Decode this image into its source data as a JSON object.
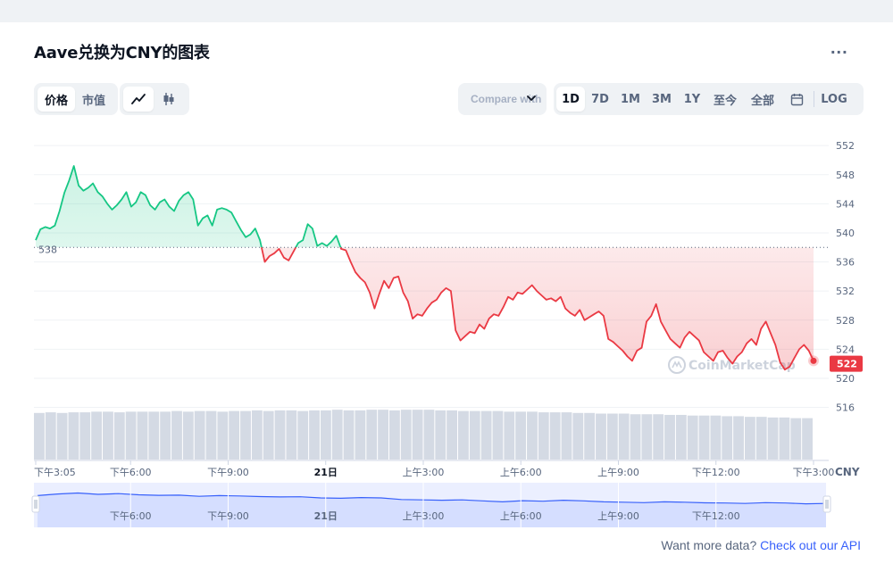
{
  "header": {
    "title": "Aave兑换为CNY的图表",
    "more_label": "..."
  },
  "toolbar": {
    "metric_tabs": [
      {
        "label": "价格",
        "active": true
      },
      {
        "label": "市值",
        "active": false
      }
    ],
    "chart_type_icons": [
      {
        "icon": "line-chart-icon",
        "active": true
      },
      {
        "icon": "candlestick-icon",
        "active": false
      }
    ],
    "compare_label": "Compare with",
    "ranges": [
      {
        "label": "1D",
        "active": true
      },
      {
        "label": "7D",
        "active": false
      },
      {
        "label": "1M",
        "active": false
      },
      {
        "label": "3M",
        "active": false
      },
      {
        "label": "1Y",
        "active": false
      },
      {
        "label": "至今",
        "active": false
      },
      {
        "label": "全部",
        "active": false
      }
    ],
    "calendar_icon": "calendar-icon",
    "log_label": "LOG"
  },
  "footer": {
    "prompt": "Want more data?",
    "link": "Check out our API"
  },
  "colors": {
    "up": "#16c784",
    "down": "#ea3943",
    "navigator": "#3861fb"
  },
  "chart_data": {
    "type": "line",
    "currency_label": "CNY",
    "watermark": "CoinMarketCap",
    "reference_label": "538",
    "reference_value": 538,
    "last_price_label": "522",
    "last_price_value": 522,
    "ylim": [
      513,
      553
    ],
    "y_ticks": [
      552,
      548,
      544,
      540,
      536,
      532,
      528,
      524,
      520,
      516
    ],
    "x_start_hours": 15.0833,
    "x_end_hours": 39.0,
    "x_ticks": [
      {
        "label": "下午3:05",
        "hours": 15.0833
      },
      {
        "label": "下午6:00",
        "hours": 18
      },
      {
        "label": "下午9:00",
        "hours": 21
      },
      {
        "label": "21日",
        "hours": 24
      },
      {
        "label": "上午3:00",
        "hours": 27
      },
      {
        "label": "上午6:00",
        "hours": 30
      },
      {
        "label": "上午9:00",
        "hours": 33
      },
      {
        "label": "下午12:00",
        "hours": 36
      },
      {
        "label": "下午3:00",
        "hours": 39
      }
    ],
    "navigator_ticks": [
      {
        "label": "下午6:00",
        "hours": 18
      },
      {
        "label": "下午9:00",
        "hours": 21
      },
      {
        "label": "21日",
        "hours": 24
      },
      {
        "label": "上午3:00",
        "hours": 27
      },
      {
        "label": "上午6:00",
        "hours": 30
      },
      {
        "label": "上午9:00",
        "hours": 33
      },
      {
        "label": "下午12:00",
        "hours": 36
      }
    ],
    "series": [
      {
        "values": [
          539.0,
          540.5,
          540.8,
          540.6,
          541.0,
          543.0,
          545.5,
          547.2,
          549.2,
          546.5,
          545.8,
          546.2,
          546.8,
          545.6,
          545.0,
          544.0,
          543.2,
          543.8,
          544.6,
          545.6,
          543.6,
          544.2,
          545.6,
          545.2,
          543.8,
          543.2,
          544.2,
          544.6,
          543.6,
          543.0,
          544.4,
          545.2,
          545.6,
          544.6,
          541.0,
          542.0,
          542.4,
          541.0,
          543.2,
          543.4,
          543.2,
          542.8,
          541.6,
          540.4,
          539.4,
          539.8,
          540.6,
          539.0,
          536.0,
          536.8,
          537.2,
          537.8,
          536.6,
          536.2,
          537.4,
          538.6,
          539.0,
          541.2,
          540.6,
          538.2,
          538.6,
          538.2,
          538.8,
          539.6,
          537.8,
          537.6,
          536.0,
          534.6,
          533.8,
          533.2,
          531.8,
          529.6,
          531.6,
          533.4,
          532.4,
          533.8,
          534.0,
          531.8,
          530.6,
          528.2,
          528.8,
          528.6,
          529.6,
          530.4,
          530.8,
          531.8,
          532.4,
          532.0,
          526.6,
          525.2,
          525.8,
          526.4,
          526.2,
          527.4,
          526.8,
          528.2,
          528.8,
          528.6,
          529.8,
          531.2,
          530.8,
          531.8,
          531.6,
          532.2,
          532.8,
          532.0,
          531.4,
          530.8,
          531.0,
          530.6,
          531.2,
          529.6,
          529.0,
          528.6,
          529.4,
          528.0,
          528.4,
          528.8,
          529.2,
          528.6,
          525.4,
          525.0,
          524.4,
          523.8,
          523.0,
          522.4,
          523.8,
          524.2,
          527.8,
          528.6,
          530.2,
          527.8,
          526.6,
          525.4,
          524.8,
          524.2,
          525.6,
          526.4,
          525.8,
          525.2,
          523.6,
          523.0,
          522.4,
          523.6,
          523.8,
          522.8,
          522.0,
          523.0,
          523.6,
          524.8,
          525.4,
          524.6,
          526.8,
          527.8,
          526.2,
          524.6,
          522.2,
          521.2,
          521.6,
          522.8,
          524.0,
          524.6,
          523.8,
          522.4
        ]
      }
    ],
    "volume_values": [
      0.72,
      0.73,
      0.72,
      0.73,
      0.73,
      0.74,
      0.74,
      0.73,
      0.74,
      0.74,
      0.74,
      0.74,
      0.75,
      0.74,
      0.75,
      0.75,
      0.74,
      0.75,
      0.75,
      0.76,
      0.75,
      0.76,
      0.76,
      0.75,
      0.76,
      0.76,
      0.77,
      0.76,
      0.76,
      0.77,
      0.77,
      0.76,
      0.77,
      0.77,
      0.77,
      0.76,
      0.76,
      0.75,
      0.75,
      0.75,
      0.75,
      0.74,
      0.74,
      0.74,
      0.73,
      0.73,
      0.73,
      0.72,
      0.72,
      0.71,
      0.71,
      0.71,
      0.7,
      0.7,
      0.7,
      0.69,
      0.69,
      0.68,
      0.68,
      0.68,
      0.67,
      0.67,
      0.66,
      0.66,
      0.65,
      0.65,
      0.64,
      0.64
    ],
    "navigator_values": [
      0.62,
      0.7,
      0.75,
      0.68,
      0.72,
      0.66,
      0.63,
      0.64,
      0.58,
      0.62,
      0.6,
      0.57,
      0.55,
      0.56,
      0.5,
      0.48,
      0.52,
      0.5,
      0.42,
      0.4,
      0.38,
      0.4,
      0.35,
      0.3,
      0.36,
      0.33,
      0.38,
      0.35,
      0.3,
      0.28,
      0.26,
      0.3,
      0.28,
      0.25,
      0.24,
      0.22,
      0.26,
      0.24,
      0.2,
      0.22
    ]
  }
}
